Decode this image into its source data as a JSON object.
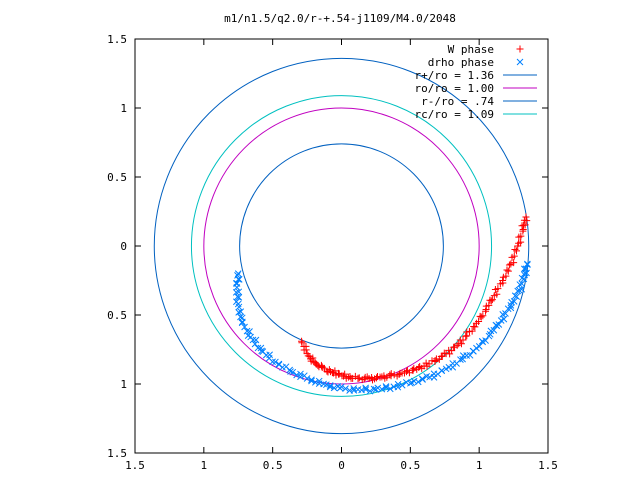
{
  "chart_data": {
    "type": "scatter",
    "title": "m1/n1.5/q2.0/r-+.54-j1109/M4.0/2048",
    "xlabel": "",
    "ylabel": "",
    "xlim": [
      -1.5,
      1.5
    ],
    "ylim": [
      -1.5,
      1.5
    ],
    "x_ticks": [
      {
        "value": -1.5,
        "label": "1.5"
      },
      {
        "value": -1.0,
        "label": "1"
      },
      {
        "value": -0.5,
        "label": "0.5"
      },
      {
        "value": 0.0,
        "label": "0"
      },
      {
        "value": 0.5,
        "label": "0.5"
      },
      {
        "value": 1.0,
        "label": "1"
      },
      {
        "value": 1.5,
        "label": "1.5"
      }
    ],
    "y_ticks": [
      {
        "value": 1.5,
        "label": "1.5"
      },
      {
        "value": 1.0,
        "label": "1"
      },
      {
        "value": 0.5,
        "label": "0.5"
      },
      {
        "value": 0.0,
        "label": "0"
      },
      {
        "value": -0.5,
        "label": "0.5"
      },
      {
        "value": -1.0,
        "label": "1"
      },
      {
        "value": -1.5,
        "label": "1.5"
      }
    ],
    "grid": false,
    "legend_position": "top-right",
    "scatter_series": [
      {
        "name": "W phase",
        "marker": "plus",
        "color": "#ff0000",
        "points": [
          [
            -0.29,
            -0.69
          ],
          [
            -0.25,
            -0.78
          ],
          [
            -0.2,
            -0.84
          ],
          [
            -0.14,
            -0.88
          ],
          [
            -0.08,
            -0.91
          ],
          [
            -0.02,
            -0.93
          ],
          [
            0.05,
            -0.95
          ],
          [
            0.12,
            -0.96
          ],
          [
            0.2,
            -0.96
          ],
          [
            0.28,
            -0.95
          ],
          [
            0.36,
            -0.94
          ],
          [
            0.44,
            -0.92
          ],
          [
            0.52,
            -0.9
          ],
          [
            0.6,
            -0.87
          ],
          [
            0.68,
            -0.83
          ],
          [
            0.76,
            -0.78
          ],
          [
            0.84,
            -0.72
          ],
          [
            0.91,
            -0.65
          ],
          [
            0.98,
            -0.56
          ],
          [
            1.05,
            -0.46
          ],
          [
            1.11,
            -0.36
          ],
          [
            1.17,
            -0.25
          ],
          [
            1.23,
            -0.13
          ],
          [
            1.28,
            0.0
          ],
          [
            1.32,
            0.12
          ],
          [
            1.34,
            0.21
          ]
        ]
      },
      {
        "name": "drho phase",
        "marker": "cross",
        "color": "#0080ff",
        "points": [
          [
            -0.75,
            -0.2
          ],
          [
            -0.76,
            -0.3
          ],
          [
            -0.75,
            -0.42
          ],
          [
            -0.72,
            -0.55
          ],
          [
            -0.66,
            -0.66
          ],
          [
            -0.58,
            -0.76
          ],
          [
            -0.48,
            -0.84
          ],
          [
            -0.37,
            -0.91
          ],
          [
            -0.25,
            -0.96
          ],
          [
            -0.13,
            -1.0
          ],
          [
            -0.01,
            -1.03
          ],
          [
            0.12,
            -1.04
          ],
          [
            0.25,
            -1.04
          ],
          [
            0.38,
            -1.02
          ],
          [
            0.51,
            -0.99
          ],
          [
            0.64,
            -0.95
          ],
          [
            0.76,
            -0.89
          ],
          [
            0.88,
            -0.82
          ],
          [
            0.98,
            -0.74
          ],
          [
            1.08,
            -0.64
          ],
          [
            1.16,
            -0.54
          ],
          [
            1.23,
            -0.43
          ],
          [
            1.29,
            -0.32
          ],
          [
            1.33,
            -0.21
          ],
          [
            1.35,
            -0.13
          ]
        ]
      }
    ],
    "circles": [
      {
        "name": "r+/ro = 1.36",
        "radius": 1.36,
        "color": "#0060c0"
      },
      {
        "name": "ro/ro = 1.00",
        "radius": 1.0,
        "color": "#c000c0"
      },
      {
        "name": "r-/ro = .74",
        "radius": 0.74,
        "color": "#0060c0"
      },
      {
        "name": "rc/ro = 1.09",
        "radius": 1.09,
        "color": "#00c0c0"
      }
    ]
  }
}
